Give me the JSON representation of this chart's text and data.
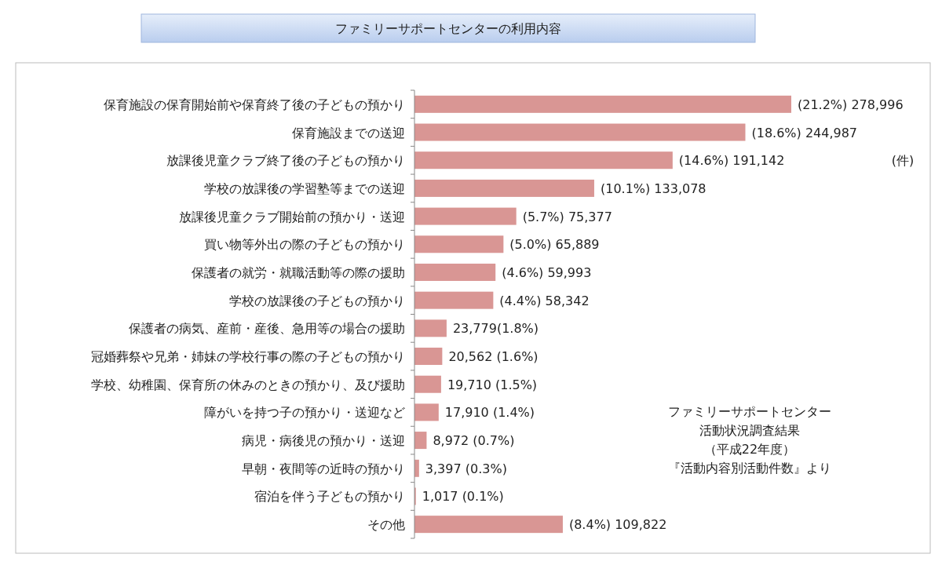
{
  "chart_data": {
    "type": "bar",
    "orientation": "horizontal",
    "title": "ファミリーサポートセンターの利用内容",
    "categories": [
      "保育施設の保育開始前や保育終了後の子どもの預かり",
      "保育施設までの送迎",
      "放課後児童クラブ終了後の子どもの預かり",
      "学校の放課後の学習塾等までの送迎",
      "放課後児童クラブ開始前の預かり・送迎",
      "買い物等外出の際の子どもの預かり",
      "保護者の就労・就職活動等の際の援助",
      "学校の放課後の子どもの預かり",
      "保護者の病気、産前・産後、急用等の場合の援助",
      "冠婚葬祭や兄弟・姉妹の学校行事の際の子どもの預かり",
      "学校、幼稚園、保育所の休みのときの預かり、及び援助",
      "障がいを持つ子の預かり・送迎など",
      "病児・病後児の預かり・送迎",
      "早朝・夜間等の近時の預かり",
      "宿泊を伴う子どもの預かり",
      "その他"
    ],
    "values": [
      278996,
      244987,
      191142,
      133078,
      75377,
      65889,
      59993,
      58342,
      23779,
      20562,
      19710,
      17910,
      8972,
      3397,
      1017,
      109822
    ],
    "value_labels": [
      "(21.2%) 278,996",
      "(18.6%) 244,987",
      "(14.6%) 191,142",
      "(10.1%) 133,078",
      "(5.7%) 75,377",
      "(5.0%) 65,889",
      "(4.6%) 59,993",
      "(4.4%) 58,342",
      "23,779(1.8%)",
      "20,562 (1.6%)",
      "19,710 (1.5%)",
      "17,910 (1.4%)",
      "8,972 (0.7%)",
      "3,397 (0.3%)",
      "1,017 (0.1%)",
      "(8.4%) 109,822"
    ],
    "color": "#d99694",
    "annotations": [
      "(件)",
      "ファミリーサポートセンター",
      "活動状況調査結果",
      "（平成22年度）",
      "『活動内容別活動件数』より"
    ]
  }
}
